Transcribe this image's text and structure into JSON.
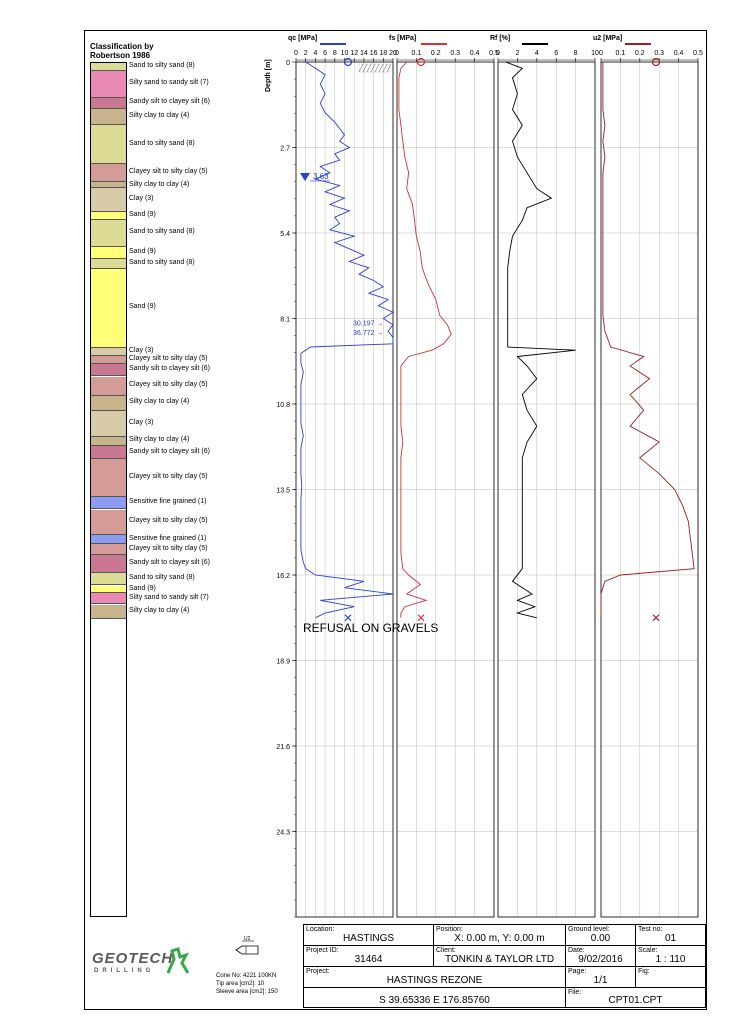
{
  "classification": {
    "title": "Classification by",
    "subtitle": "Robertson 1986",
    "layers": [
      {
        "top": 0.0,
        "bottom": 0.25,
        "label": "Sand to silty sand (8)",
        "color": "#dcdc96"
      },
      {
        "top": 0.25,
        "bottom": 1.1,
        "label": "Silty sand to sandy silt (7)",
        "color": "#e88ab4"
      },
      {
        "top": 1.1,
        "bottom": 1.45,
        "label": "Sandy silt to clayey silt (6)",
        "color": "#c87890"
      },
      {
        "top": 1.45,
        "bottom": 1.95,
        "label": "Silty clay to clay (4)",
        "color": "#c8b48c"
      },
      {
        "top": 1.95,
        "bottom": 3.2,
        "label": "Sand to silty sand (8)",
        "color": "#dcdc96"
      },
      {
        "top": 3.2,
        "bottom": 3.75,
        "label": "Clayey silt to silty clay (5)",
        "color": "#d49c96"
      },
      {
        "top": 3.75,
        "bottom": 3.95,
        "label": "Silty clay to clay (4)",
        "color": "#c8b48c"
      },
      {
        "top": 3.95,
        "bottom": 4.7,
        "label": "Clay (3)",
        "color": "#d8cca8"
      },
      {
        "top": 4.7,
        "bottom": 4.95,
        "label": "Sand (9)",
        "color": "#ffff78"
      },
      {
        "top": 4.95,
        "bottom": 5.8,
        "label": "Sand to silty sand (8)",
        "color": "#dcdc96"
      },
      {
        "top": 5.8,
        "bottom": 6.2,
        "label": "Sand (9)",
        "color": "#ffff78"
      },
      {
        "top": 6.2,
        "bottom": 6.5,
        "label": "Sand to silty sand (8)",
        "color": "#dcdc96"
      },
      {
        "top": 6.5,
        "bottom": 9.0,
        "label": "Sand (9)",
        "color": "#ffff78"
      },
      {
        "top": 9.0,
        "bottom": 9.25,
        "label": "Clay (3)",
        "color": "#d8cca8"
      },
      {
        "top": 9.25,
        "bottom": 9.5,
        "label": "Clayey silt to silty clay (5)",
        "color": "#d49c96"
      },
      {
        "top": 9.5,
        "bottom": 9.9,
        "label": "Sandy silt to clayey silt (6)",
        "color": "#c87890"
      },
      {
        "top": 9.9,
        "bottom": 10.5,
        "label": "Clayey silt to silty clay (5)",
        "color": "#d49c96"
      },
      {
        "top": 10.5,
        "bottom": 11.0,
        "label": "Silty clay to clay (4)",
        "color": "#c8b48c"
      },
      {
        "top": 11.0,
        "bottom": 11.8,
        "label": "Clay (3)",
        "color": "#d8cca8"
      },
      {
        "top": 11.8,
        "bottom": 12.1,
        "label": "Silty clay to clay (4)",
        "color": "#c8b48c"
      },
      {
        "top": 12.1,
        "bottom": 12.5,
        "label": "Sandy silt to clayey silt (6)",
        "color": "#c87890"
      },
      {
        "top": 12.5,
        "bottom": 13.7,
        "label": "Clayey silt to silty clay (5)",
        "color": "#d49c96"
      },
      {
        "top": 13.7,
        "bottom": 14.1,
        "label": "Sensitive fine grained (1)",
        "color": "#8c9cf0"
      },
      {
        "top": 14.1,
        "bottom": 14.9,
        "label": "Clayey silt to silty clay (5)",
        "color": "#d49c96"
      },
      {
        "top": 14.9,
        "bottom": 15.2,
        "label": "Sensitive fine grained (1)",
        "color": "#8c9cf0"
      },
      {
        "top": 15.2,
        "bottom": 15.55,
        "label": "Clayey silt to silty clay (5)",
        "color": "#d49c96"
      },
      {
        "top": 15.55,
        "bottom": 16.1,
        "label": "Sandy silt to clayey silt (6)",
        "color": "#c87890"
      },
      {
        "top": 16.1,
        "bottom": 16.5,
        "label": "Sand to silty sand (8)",
        "color": "#dcdc96"
      },
      {
        "top": 16.5,
        "bottom": 16.75,
        "label": "Sand (9)",
        "color": "#ffff78"
      },
      {
        "top": 16.75,
        "bottom": 17.1,
        "label": "Silty sand to sandy silt (7)",
        "color": "#e88ab4"
      },
      {
        "top": 17.1,
        "bottom": 17.55,
        "label": "Silty clay to clay (4)",
        "color": "#c8b48c"
      }
    ]
  },
  "chart_data": [
    {
      "type": "line",
      "title": "qc [MPa]",
      "ylabel": "Depth [m]",
      "xlim": [
        0,
        20
      ],
      "ylim": [
        0,
        27
      ],
      "x_ticks": [
        "0",
        "2",
        "4",
        "6",
        "8",
        "10",
        "12",
        "14",
        "16",
        "18",
        "20"
      ],
      "y_ticks": [
        "0",
        "2.7",
        "5.4",
        "8.1",
        "10.8",
        "13.5",
        "16.2",
        "18.9",
        "21.6",
        "24.3"
      ],
      "color": "#2a3fd6",
      "depth": [
        0,
        0.2,
        0.4,
        0.7,
        1.0,
        1.3,
        1.6,
        1.9,
        2.1,
        2.3,
        2.5,
        2.7,
        2.9,
        3.1,
        3.3,
        3.5,
        3.7,
        3.9,
        4.1,
        4.3,
        4.5,
        4.7,
        4.9,
        5.1,
        5.3,
        5.5,
        5.7,
        5.9,
        6.1,
        6.3,
        6.5,
        6.7,
        6.9,
        7.1,
        7.3,
        7.5,
        7.7,
        7.9,
        8.1,
        8.3,
        8.5,
        8.7,
        8.9,
        9.0,
        9.2,
        9.5,
        9.8,
        10.2,
        10.6,
        11.0,
        11.4,
        11.8,
        12.2,
        12.6,
        13.0,
        13.4,
        13.8,
        14.2,
        14.6,
        15.0,
        15.4,
        15.8,
        16.0,
        16.2,
        16.4,
        16.6,
        16.8,
        17.0,
        17.2,
        17.4,
        17.55
      ],
      "values": [
        2,
        4,
        6,
        5,
        6,
        5,
        6,
        8,
        9,
        10,
        9,
        11,
        8,
        9,
        5,
        7,
        4,
        9,
        6,
        10,
        7,
        11,
        8,
        9,
        7,
        12,
        8,
        11,
        14,
        11,
        15,
        13,
        16,
        18,
        15,
        19,
        17,
        20,
        18,
        20,
        19,
        20,
        20,
        3,
        1,
        1,
        1.5,
        1,
        1,
        1,
        1,
        1.5,
        1,
        1,
        1,
        1.2,
        1,
        1,
        1,
        1,
        1,
        1.5,
        2,
        4,
        14,
        10,
        20,
        5,
        12,
        6,
        4
      ],
      "annotations": [
        "3.63",
        "30.197",
        "36.772",
        "REFUSAL ON GRAVELS"
      ],
      "water_level": 3.63
    },
    {
      "type": "line",
      "title": "fs [MPa]",
      "xlim": [
        0,
        0.5
      ],
      "x_ticks": [
        "0",
        "0.1",
        "0.2",
        "0.3",
        "0.4",
        "0.5"
      ],
      "color": "#d63030",
      "depth": [
        0,
        0.2,
        0.5,
        1.0,
        1.5,
        2.0,
        2.5,
        3.0,
        3.5,
        4.0,
        4.5,
        5.0,
        5.5,
        6.0,
        6.5,
        7.0,
        7.5,
        8.0,
        8.3,
        8.6,
        8.9,
        9.1,
        9.3,
        9.6,
        10.0,
        10.5,
        11.0,
        11.5,
        12.0,
        12.5,
        13.0,
        13.5,
        14.0,
        14.5,
        15.0,
        15.5,
        16.0,
        16.2,
        16.5,
        16.8,
        17.0,
        17.2,
        17.4,
        17.55
      ],
      "values": [
        0.05,
        0.02,
        0.01,
        0.01,
        0.01,
        0.02,
        0.03,
        0.04,
        0.06,
        0.05,
        0.08,
        0.09,
        0.1,
        0.12,
        0.13,
        0.16,
        0.2,
        0.22,
        0.26,
        0.28,
        0.24,
        0.18,
        0.06,
        0.02,
        0.02,
        0.02,
        0.02,
        0.02,
        0.03,
        0.02,
        0.02,
        0.02,
        0.02,
        0.02,
        0.02,
        0.02,
        0.03,
        0.06,
        0.12,
        0.05,
        0.15,
        0.04,
        0.02,
        0.02
      ]
    },
    {
      "type": "line",
      "title": "Rf [%]",
      "xlim": [
        0,
        10
      ],
      "x_ticks": [
        "0",
        "2",
        "4",
        "6",
        "8",
        "10"
      ],
      "color": "#000000",
      "depth": [
        0,
        0.2,
        0.5,
        1.0,
        1.5,
        2.0,
        2.5,
        3.0,
        3.5,
        4.0,
        4.3,
        4.6,
        5.0,
        5.5,
        6.0,
        6.5,
        7.0,
        7.5,
        8.0,
        8.5,
        9.0,
        9.1,
        9.3,
        9.6,
        10.0,
        10.5,
        11.0,
        11.5,
        12.0,
        12.5,
        13.0,
        13.5,
        14.0,
        14.5,
        15.0,
        15.5,
        16.0,
        16.4,
        16.8,
        17.0,
        17.2,
        17.4,
        17.55
      ],
      "values": [
        0.8,
        2.5,
        1.5,
        2,
        1.5,
        2.5,
        1.5,
        2,
        3,
        4,
        5.5,
        3,
        2.5,
        1.5,
        1.2,
        1,
        1,
        1,
        1,
        1,
        1,
        8,
        2,
        3,
        4,
        2.5,
        3,
        4,
        3,
        2.5,
        2.5,
        2.5,
        2.5,
        2.5,
        2.5,
        2.5,
        2.5,
        1.5,
        3.5,
        2,
        3.8,
        2,
        4
      ]
    },
    {
      "type": "line",
      "title": "u2 [MPa]",
      "xlim": [
        0,
        0.5
      ],
      "x_ticks": [
        "0",
        "0.1",
        "0.2",
        "0.3",
        "0.4",
        "0.5"
      ],
      "color": "#9a2020",
      "depth": [
        0,
        0.5,
        1.0,
        1.5,
        2.0,
        2.5,
        3.0,
        3.5,
        4.0,
        4.5,
        5.0,
        5.5,
        6.0,
        6.5,
        7.0,
        7.5,
        8.0,
        8.5,
        9.0,
        9.3,
        9.6,
        10.0,
        10.5,
        11.0,
        11.5,
        12.0,
        12.5,
        13.0,
        13.5,
        14.0,
        14.5,
        15.0,
        15.5,
        16.0,
        16.2,
        16.4,
        16.6,
        16.8,
        17.0,
        17.4,
        17.55
      ],
      "values": [
        0.01,
        0.01,
        0.01,
        0.01,
        0.02,
        0.01,
        0.02,
        0.01,
        0.01,
        0.01,
        0.01,
        0.01,
        0.01,
        0.01,
        0.01,
        0.01,
        0.01,
        0.02,
        0.05,
        0.22,
        0.15,
        0.25,
        0.15,
        0.22,
        0.15,
        0.3,
        0.2,
        0.3,
        0.38,
        0.42,
        0.45,
        0.46,
        0.47,
        0.48,
        0.1,
        0.02,
        0.01,
        0.0,
        0.0,
        0.0,
        0.0
      ]
    }
  ],
  "table": {
    "location_label": "Location:",
    "location": "HASTINGS",
    "position_label": "Position:",
    "position": "X: 0.00 m, Y: 0.00 m",
    "ground_label": "Ground level:",
    "ground": "0.00",
    "test_label": "Test no:",
    "test": "01",
    "project_id_label": "Project ID:",
    "project_id": "31464",
    "client_label": "Client:",
    "client": "TONKIN & TAYLOR LTD",
    "date_label": "Date:",
    "date": "9/02/2016",
    "scale_label": "Scale:",
    "scale": "1 : 110",
    "project_label": "Project:",
    "project": "HASTINGS REZONE",
    "page_label": "Page:",
    "page": "1/1",
    "fig_label": "Fig:",
    "coords": "S 39.65336 E 176.85760",
    "file_label": "File:",
    "file": "CPT01.CPT"
  },
  "logo": {
    "name": "GEOTECH",
    "sub": "DRILLING"
  },
  "cone": {
    "line1": "Cone No: 4221 100KN",
    "line2": "Tip area [cm2]: 10",
    "line3": "Sleeve area [cm2]: 150",
    "probe_label": "U2"
  }
}
